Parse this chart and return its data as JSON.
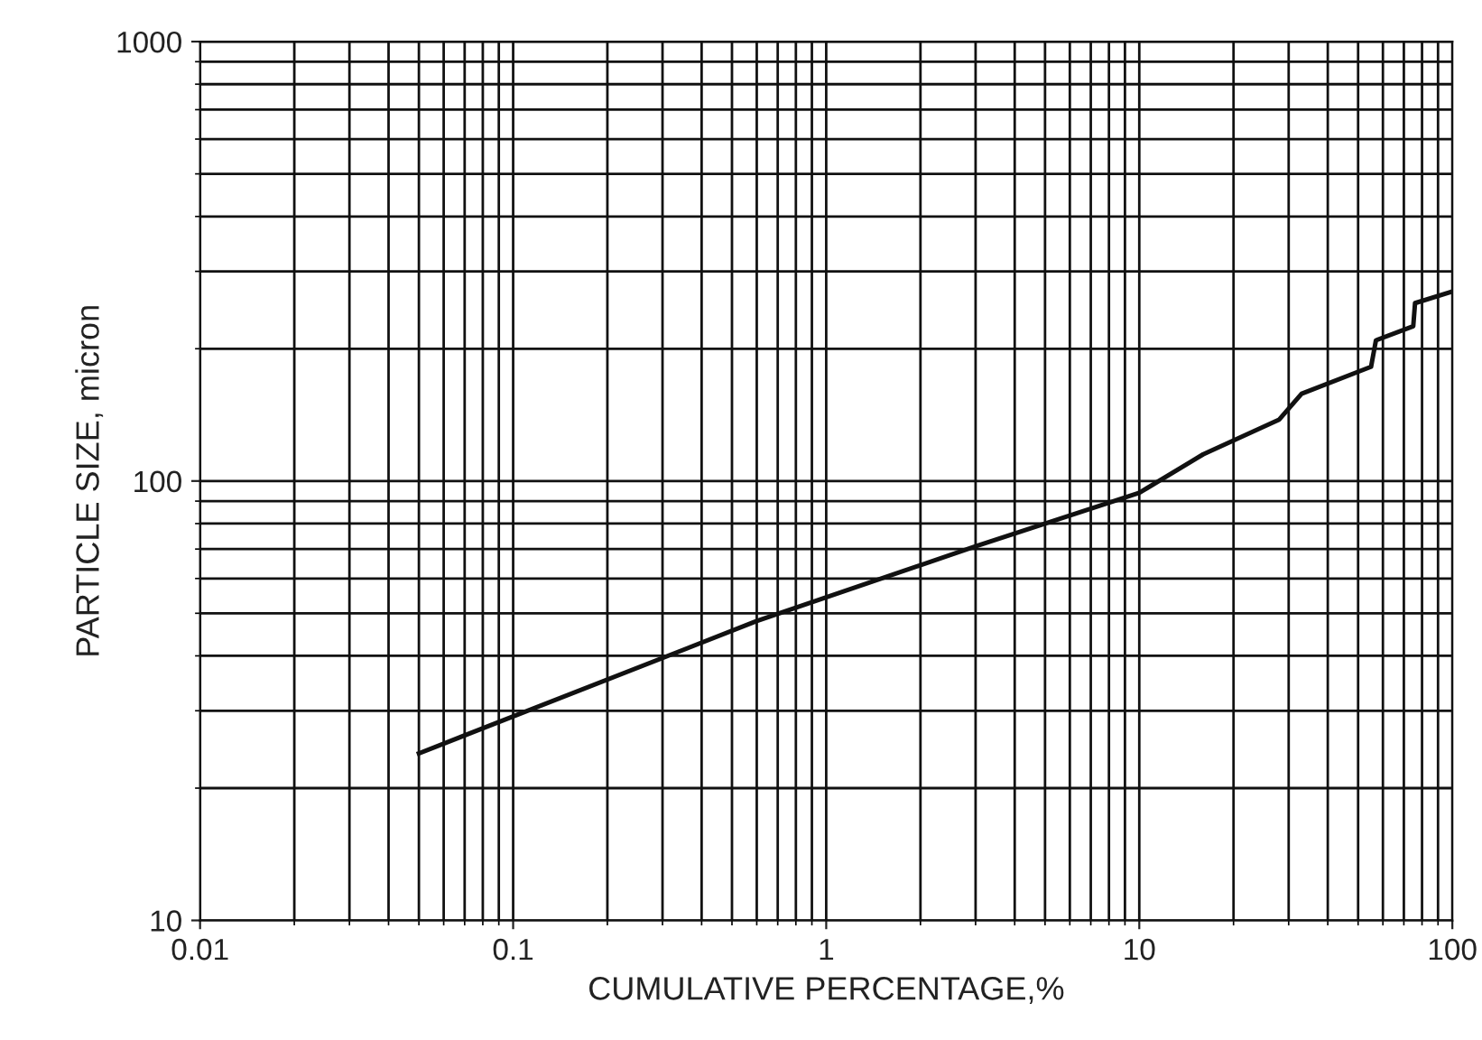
{
  "chart_data": {
    "type": "line",
    "xlabel": "CUMULATIVE PERCENTAGE,%",
    "ylabel": "PARTICLE SIZE, micron",
    "log": "xy",
    "xlim": [
      0.01,
      100
    ],
    "ylim": [
      10,
      1000
    ],
    "xticks": [
      0.01,
      0.1,
      1,
      10,
      100
    ],
    "yticks": [
      10,
      100,
      1000
    ],
    "grid": true,
    "series": [
      {
        "color": "#111111",
        "x": [
          0.05,
          0.6,
          3,
          10,
          16,
          28,
          33,
          55,
          57,
          75,
          76,
          100
        ],
        "values": [
          24,
          48,
          71,
          94,
          115,
          138,
          158,
          182,
          209,
          225,
          254,
          270
        ]
      }
    ]
  }
}
